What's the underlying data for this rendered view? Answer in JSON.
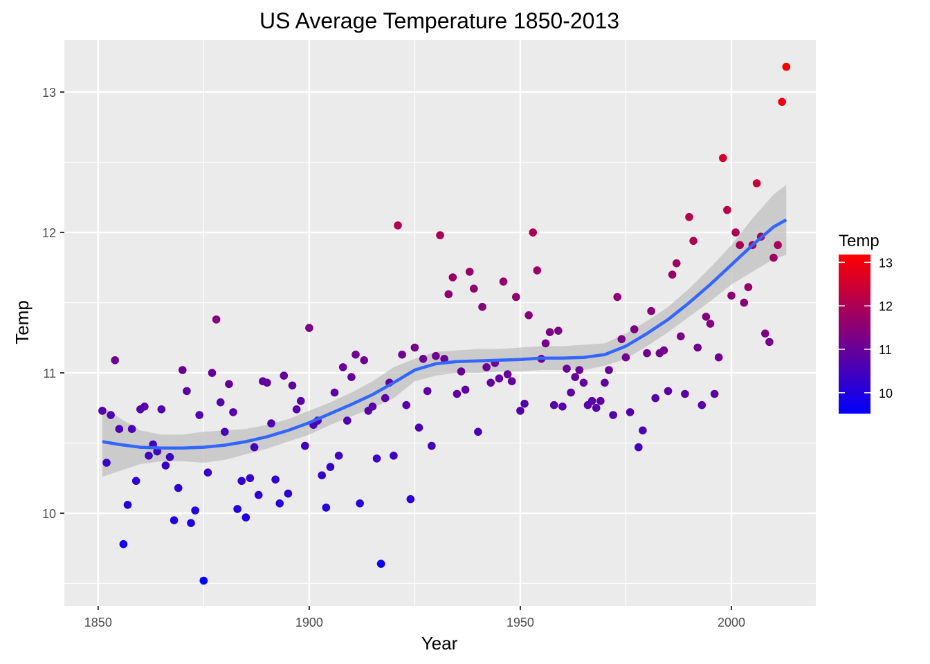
{
  "chart_data": {
    "type": "scatter",
    "title": "US Average Temperature 1850-2013",
    "xlabel": "Year",
    "ylabel": "Temp",
    "xlim": [
      1842,
      2020
    ],
    "ylim": [
      9.34,
      13.37
    ],
    "x_ticks": [
      1850,
      1900,
      1950,
      2000
    ],
    "x_tick_labels": [
      "1850",
      "1900",
      "1950",
      "2000"
    ],
    "y_ticks": [
      10,
      11,
      12,
      13
    ],
    "y_tick_labels": [
      "10",
      "11",
      "12",
      "13"
    ],
    "grid": true,
    "legend": {
      "title": "Temp",
      "placement": "right",
      "type": "color-gradient",
      "range": [
        9.52,
        13.18
      ],
      "ticks": [
        10,
        11,
        12,
        13
      ],
      "tick_labels": [
        "10",
        "11",
        "12",
        "13"
      ],
      "low_color": "#0000ff",
      "high_color": "#ff0000"
    },
    "colors": {
      "panel": "#ebebeb",
      "grid": "#ffffff",
      "smooth_line": "#3366ff",
      "ribbon": "#bebebe"
    },
    "series": [
      {
        "type": "scatter",
        "x": [
          1851,
          1852,
          1853,
          1854,
          1855,
          1856,
          1857,
          1858,
          1859,
          1860,
          1861,
          1862,
          1863,
          1864,
          1865,
          1866,
          1867,
          1868,
          1869,
          1870,
          1871,
          1872,
          1873,
          1874,
          1875,
          1876,
          1877,
          1878,
          1879,
          1880,
          1881,
          1882,
          1883,
          1884,
          1885,
          1886,
          1887,
          1888,
          1889,
          1890,
          1891,
          1892,
          1893,
          1894,
          1895,
          1896,
          1897,
          1898,
          1899,
          1900,
          1901,
          1902,
          1903,
          1904,
          1905,
          1906,
          1907,
          1908,
          1909,
          1910,
          1911,
          1912,
          1913,
          1914,
          1915,
          1916,
          1917,
          1918,
          1919,
          1920,
          1921,
          1922,
          1923,
          1924,
          1925,
          1926,
          1927,
          1928,
          1929,
          1930,
          1931,
          1932,
          1933,
          1934,
          1935,
          1936,
          1937,
          1938,
          1939,
          1940,
          1941,
          1942,
          1943,
          1944,
          1945,
          1946,
          1947,
          1948,
          1949,
          1950,
          1951,
          1952,
          1953,
          1954,
          1955,
          1956,
          1957,
          1958,
          1959,
          1960,
          1961,
          1962,
          1963,
          1964,
          1965,
          1966,
          1967,
          1968,
          1969,
          1970,
          1971,
          1972,
          1973,
          1974,
          1975,
          1976,
          1977,
          1978,
          1979,
          1980,
          1981,
          1982,
          1983,
          1984,
          1985,
          1986,
          1987,
          1988,
          1989,
          1990,
          1991,
          1992,
          1993,
          1994,
          1995,
          1996,
          1997,
          1998,
          1999,
          2000,
          2001,
          2002,
          2003,
          2004,
          2005,
          2006,
          2007,
          2008,
          2009,
          2010,
          2011,
          2012,
          2013
        ],
        "y": [
          10.73,
          10.36,
          10.7,
          11.09,
          10.6,
          9.78,
          10.06,
          10.6,
          10.23,
          10.74,
          10.76,
          10.41,
          10.49,
          10.44,
          10.74,
          10.34,
          10.4,
          9.95,
          10.18,
          11.02,
          10.87,
          9.93,
          10.02,
          10.7,
          9.52,
          10.29,
          11.0,
          11.38,
          10.79,
          10.58,
          10.92,
          10.72,
          10.03,
          10.23,
          9.97,
          10.25,
          10.47,
          10.13,
          10.94,
          10.93,
          10.64,
          10.24,
          10.07,
          10.98,
          10.14,
          10.91,
          10.74,
          10.8,
          10.48,
          11.32,
          10.63,
          10.66,
          10.27,
          10.04,
          10.33,
          10.86,
          10.41,
          11.04,
          10.66,
          10.97,
          11.13,
          10.07,
          11.09,
          10.73,
          10.76,
          10.39,
          9.64,
          10.82,
          10.93,
          10.41,
          12.05,
          11.13,
          10.77,
          10.1,
          11.18,
          10.61,
          11.1,
          10.87,
          10.48,
          11.12,
          11.98,
          11.1,
          11.56,
          11.68,
          10.85,
          11.01,
          10.88,
          11.72,
          11.6,
          10.58,
          11.47,
          11.04,
          10.93,
          11.07,
          10.96,
          11.65,
          10.99,
          10.94,
          11.54,
          10.73,
          10.78,
          11.41,
          12.0,
          11.73,
          11.1,
          11.21,
          11.29,
          10.77,
          11.3,
          10.76,
          11.03,
          10.86,
          10.97,
          11.02,
          10.93,
          10.77,
          10.8,
          10.75,
          10.8,
          10.93,
          11.02,
          10.7,
          11.54,
          11.24,
          11.11,
          10.72,
          11.31,
          10.47,
          10.59,
          11.14,
          11.44,
          10.82,
          11.14,
          11.16,
          10.87,
          11.7,
          11.78,
          11.26,
          10.85,
          12.11,
          11.94,
          11.18,
          10.77,
          11.4,
          11.35,
          10.85,
          11.11,
          12.53,
          12.16,
          11.55,
          12.0,
          11.91,
          11.5,
          11.61,
          11.91,
          12.35,
          11.97,
          11.28,
          11.22,
          11.82,
          11.91,
          12.93,
          13.18
        ]
      },
      {
        "type": "smooth",
        "name": "",
        "x": [
          1851,
          1855,
          1860,
          1865,
          1870,
          1875,
          1880,
          1885,
          1890,
          1895,
          1900,
          1905,
          1910,
          1915,
          1920,
          1925,
          1930,
          1935,
          1940,
          1945,
          1950,
          1955,
          1960,
          1965,
          1970,
          1975,
          1980,
          1985,
          1990,
          1995,
          2000,
          2005,
          2010,
          2013
        ],
        "y": [
          10.51,
          10.49,
          10.47,
          10.465,
          10.465,
          10.47,
          10.485,
          10.51,
          10.545,
          10.59,
          10.645,
          10.71,
          10.775,
          10.845,
          10.93,
          11.02,
          11.065,
          11.08,
          11.085,
          11.09,
          11.095,
          11.105,
          11.105,
          11.11,
          11.13,
          11.19,
          11.28,
          11.38,
          11.5,
          11.63,
          11.77,
          11.91,
          12.04,
          12.09
        ],
        "lower": [
          10.26,
          10.3,
          10.35,
          10.37,
          10.37,
          10.36,
          10.38,
          10.42,
          10.46,
          10.51,
          10.56,
          10.63,
          10.69,
          10.75,
          10.82,
          10.94,
          10.98,
          11.0,
          11.0,
          11.01,
          11.01,
          11.02,
          11.02,
          11.02,
          11.05,
          11.1,
          11.19,
          11.29,
          11.4,
          11.51,
          11.63,
          11.72,
          11.81,
          11.84
        ],
        "upper": [
          10.76,
          10.68,
          10.59,
          10.56,
          10.56,
          10.58,
          10.59,
          10.6,
          10.63,
          10.67,
          10.73,
          10.79,
          10.86,
          10.94,
          11.04,
          11.1,
          11.15,
          11.16,
          11.17,
          11.17,
          11.18,
          11.19,
          11.19,
          11.2,
          11.21,
          11.28,
          11.37,
          11.47,
          11.6,
          11.75,
          11.91,
          12.1,
          12.27,
          12.34
        ]
      }
    ]
  }
}
